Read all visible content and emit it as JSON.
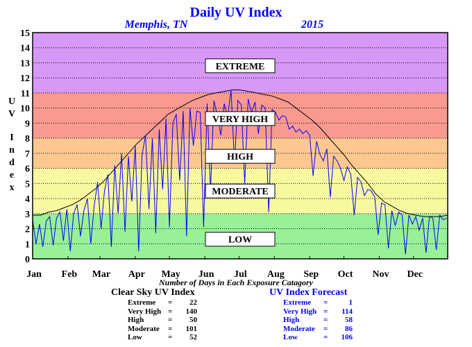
{
  "chart_data": {
    "type": "line",
    "title": "Daily UV Index",
    "subtitle_location": "Memphis, TN",
    "subtitle_year": "2015",
    "ylabel": "UV Index",
    "xlabel_note": "Number of Days in Each Exposure Catagory",
    "ylim": [
      0,
      15
    ],
    "yticks": [
      "0",
      "1",
      "2",
      "3",
      "4",
      "5",
      "6",
      "7",
      "8",
      "9",
      "10",
      "11",
      "12",
      "13",
      "14",
      "15"
    ],
    "xlim": [
      1,
      365
    ],
    "months": [
      "Jan",
      "Feb",
      "Mar",
      "Apr",
      "May",
      "Jun",
      "Jul",
      "Aug",
      "Sep",
      "Oct",
      "Nov",
      "Dec"
    ],
    "month_start_days": [
      1,
      32,
      60,
      91,
      121,
      152,
      182,
      213,
      244,
      274,
      305,
      335
    ],
    "grid": true,
    "bands": [
      {
        "label": "LOW",
        "from": 0,
        "to": 3,
        "color": "#98f098"
      },
      {
        "label": "MODERATE",
        "from": 3,
        "to": 6,
        "color": "#f8f8a0"
      },
      {
        "label": "HIGH",
        "from": 6,
        "to": 8,
        "color": "#fcc890"
      },
      {
        "label": "VERY HIGH",
        "from": 8,
        "to": 11,
        "color": "#f89a90"
      },
      {
        "label": "EXTREME",
        "from": 11,
        "to": 15,
        "color": "#d898f8"
      }
    ],
    "band_label_values": [
      {
        "label": "EXTREME",
        "y": 12.8
      },
      {
        "label": "VERY HIGH",
        "y": 9.3
      },
      {
        "label": "HIGH",
        "y": 6.8
      },
      {
        "label": "MODERATE",
        "y": 4.5
      },
      {
        "label": "LOW",
        "y": 1.3
      }
    ],
    "series": [
      {
        "name": "Clear Sky UV Index",
        "color": "#000000",
        "x": [
          1,
          8,
          15,
          22,
          29,
          36,
          43,
          50,
          57,
          64,
          71,
          78,
          85,
          92,
          99,
          106,
          113,
          120,
          127,
          134,
          141,
          148,
          155,
          162,
          169,
          176,
          183,
          190,
          197,
          204,
          211,
          218,
          225,
          232,
          239,
          246,
          253,
          260,
          267,
          274,
          281,
          288,
          295,
          302,
          309,
          316,
          323,
          330,
          337,
          344,
          351,
          358,
          365
        ],
        "y": [
          2.9,
          2.9,
          3.1,
          3.2,
          3.4,
          3.6,
          3.9,
          4.3,
          4.7,
          5.2,
          5.8,
          6.4,
          7.0,
          7.6,
          8.1,
          8.6,
          9.1,
          9.6,
          9.9,
          10.2,
          10.5,
          10.7,
          10.9,
          11.0,
          11.1,
          11.2,
          11.2,
          11.1,
          11.0,
          10.9,
          10.8,
          10.6,
          10.4,
          10.0,
          9.6,
          9.2,
          8.7,
          8.1,
          7.5,
          6.9,
          6.2,
          5.6,
          5.0,
          4.3,
          3.8,
          3.5,
          3.2,
          3.0,
          2.9,
          2.8,
          2.8,
          2.8,
          2.9
        ]
      },
      {
        "name": "UV Index Forecast",
        "color": "#0000ff",
        "x": [
          1,
          4,
          7,
          10,
          13,
          16,
          19,
          22,
          25,
          28,
          31,
          34,
          37,
          40,
          43,
          46,
          49,
          52,
          55,
          58,
          61,
          64,
          67,
          70,
          73,
          76,
          79,
          82,
          85,
          88,
          91,
          94,
          97,
          100,
          103,
          106,
          109,
          112,
          115,
          118,
          121,
          124,
          127,
          130,
          133,
          136,
          139,
          142,
          145,
          148,
          151,
          154,
          157,
          160,
          163,
          166,
          169,
          172,
          175,
          178,
          181,
          184,
          187,
          190,
          193,
          196,
          199,
          202,
          205,
          208,
          211,
          214,
          217,
          220,
          223,
          226,
          229,
          232,
          235,
          238,
          241,
          244,
          247,
          250,
          253,
          256,
          259,
          262,
          265,
          268,
          271,
          274,
          277,
          280,
          283,
          286,
          289,
          292,
          295,
          298,
          301,
          304,
          307,
          310,
          313,
          316,
          319,
          322,
          325,
          328,
          331,
          334,
          337,
          340,
          343,
          346,
          349,
          352,
          355,
          358,
          361,
          364
        ],
        "y": [
          2.6,
          1.0,
          2.3,
          0.8,
          2.5,
          2.8,
          0.9,
          2.7,
          3.1,
          1.2,
          3.3,
          0.5,
          3.0,
          3.6,
          1.5,
          3.2,
          4.0,
          1.0,
          3.5,
          5.1,
          2.0,
          4.5,
          5.6,
          0.8,
          6.2,
          3.0,
          7.0,
          1.8,
          6.8,
          3.8,
          7.5,
          0.5,
          6.9,
          8.2,
          3.3,
          8.0,
          1.7,
          8.6,
          4.6,
          9.3,
          2.1,
          9.0,
          9.6,
          5.2,
          9.8,
          1.5,
          10.0,
          7.5,
          9.8,
          9.7,
          2.1,
          10.3,
          4.5,
          10.5,
          9.5,
          8.2,
          10.3,
          9.4,
          11.2,
          6.3,
          10.5,
          10.2,
          5.0,
          10.6,
          9.7,
          10.4,
          8.3,
          10.2,
          10.0,
          3.1,
          9.9,
          9.7,
          9.2,
          9.5,
          9.4,
          8.6,
          8.8,
          8.4,
          8.6,
          8.3,
          8.5,
          8.2,
          5.5,
          7.8,
          6.9,
          6.5,
          7.3,
          4.1,
          6.8,
          6.5,
          6.0,
          5.2,
          6.1,
          5.6,
          2.9,
          5.4,
          5.1,
          4.2,
          4.6,
          4.5,
          4.1,
          1.6,
          3.7,
          3.6,
          0.7,
          3.2,
          2.2,
          3.1,
          2.9,
          0.3,
          2.9,
          2.3,
          2.8,
          1.9,
          2.7,
          0.4,
          2.8,
          2.7,
          0.6,
          2.9,
          2.6,
          2.7
        ]
      }
    ]
  },
  "stats": {
    "clear_sky": {
      "header": "Clear Sky UV Index",
      "rows": [
        {
          "label": "Extreme",
          "value": "22"
        },
        {
          "label": "Very High",
          "value": "140"
        },
        {
          "label": "High",
          "value": "50"
        },
        {
          "label": "Moderate",
          "value": "101"
        },
        {
          "label": "Low",
          "value": "52"
        }
      ]
    },
    "forecast": {
      "header": "UV Index Forecast",
      "rows": [
        {
          "label": "Extreme",
          "value": "1"
        },
        {
          "label": "Very High",
          "value": "114"
        },
        {
          "label": "High",
          "value": "58"
        },
        {
          "label": "Moderate",
          "value": "86"
        },
        {
          "label": "Low",
          "value": "106"
        }
      ]
    }
  }
}
